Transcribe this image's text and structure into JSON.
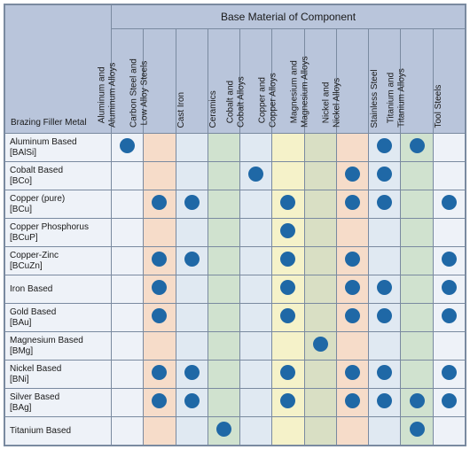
{
  "header": {
    "group_title": "Base Material of Component",
    "corner_label": "Brazing Filler Metal"
  },
  "colors": {
    "dot": "#1f68a6",
    "header_bg": "#b9c5db",
    "border": "#7a8aa0",
    "col_bg": [
      "#eef2f8",
      "#f6dcc9",
      "#e0e9f2",
      "#d0e2cf",
      "#e0e9f2",
      "#f5f2c9",
      "#d9dfc4",
      "#f6dcc9",
      "#e0e9f2",
      "#d0e2cf",
      "#eef2f8"
    ]
  },
  "columns": [
    "Aluminum and Aluminum Alloys",
    "Carbon Steel and Low Alloy Steels",
    "Cast Iron",
    "Ceramics",
    "Cobalt and Cobalt Alloys",
    "Copper and Copper Alloys",
    "Magnesium and Magnesium Alloys",
    "Nickel and Nickel Alloys",
    "Stainless Steel",
    "Titanium and Titanium Alloys",
    "Tool Steels"
  ],
  "rows": [
    {
      "label": "Aluminum Based [BAlSi]",
      "cells": [
        1,
        0,
        0,
        0,
        0,
        0,
        0,
        0,
        1,
        1,
        0
      ]
    },
    {
      "label": "Cobalt Based [BCo]",
      "cells": [
        0,
        0,
        0,
        0,
        1,
        0,
        0,
        1,
        1,
        0,
        0
      ]
    },
    {
      "label": "Copper (pure) [BCu]",
      "cells": [
        0,
        1,
        1,
        0,
        0,
        1,
        0,
        1,
        1,
        0,
        1
      ]
    },
    {
      "label": "Copper Phosphorus [BCuP]",
      "cells": [
        0,
        0,
        0,
        0,
        0,
        1,
        0,
        0,
        0,
        0,
        0
      ]
    },
    {
      "label": "Copper-Zinc [BCuZn]",
      "cells": [
        0,
        1,
        1,
        0,
        0,
        1,
        0,
        1,
        0,
        0,
        1
      ]
    },
    {
      "label": "Iron Based",
      "cells": [
        0,
        1,
        0,
        0,
        0,
        1,
        0,
        1,
        1,
        0,
        1
      ]
    },
    {
      "label": "Gold Based [BAu]",
      "cells": [
        0,
        1,
        0,
        0,
        0,
        1,
        0,
        1,
        1,
        0,
        1
      ]
    },
    {
      "label": "Magnesium Based [BMg]",
      "cells": [
        0,
        0,
        0,
        0,
        0,
        0,
        1,
        0,
        0,
        0,
        0
      ]
    },
    {
      "label": "Nickel Based [BNi]",
      "cells": [
        0,
        1,
        1,
        0,
        0,
        1,
        0,
        1,
        1,
        0,
        1
      ]
    },
    {
      "label": "Silver Based [BAg]",
      "cells": [
        0,
        1,
        1,
        0,
        0,
        1,
        0,
        1,
        1,
        1,
        1
      ]
    },
    {
      "label": "Titanium Based",
      "cells": [
        0,
        0,
        0,
        1,
        0,
        0,
        0,
        0,
        0,
        1,
        0
      ]
    }
  ]
}
